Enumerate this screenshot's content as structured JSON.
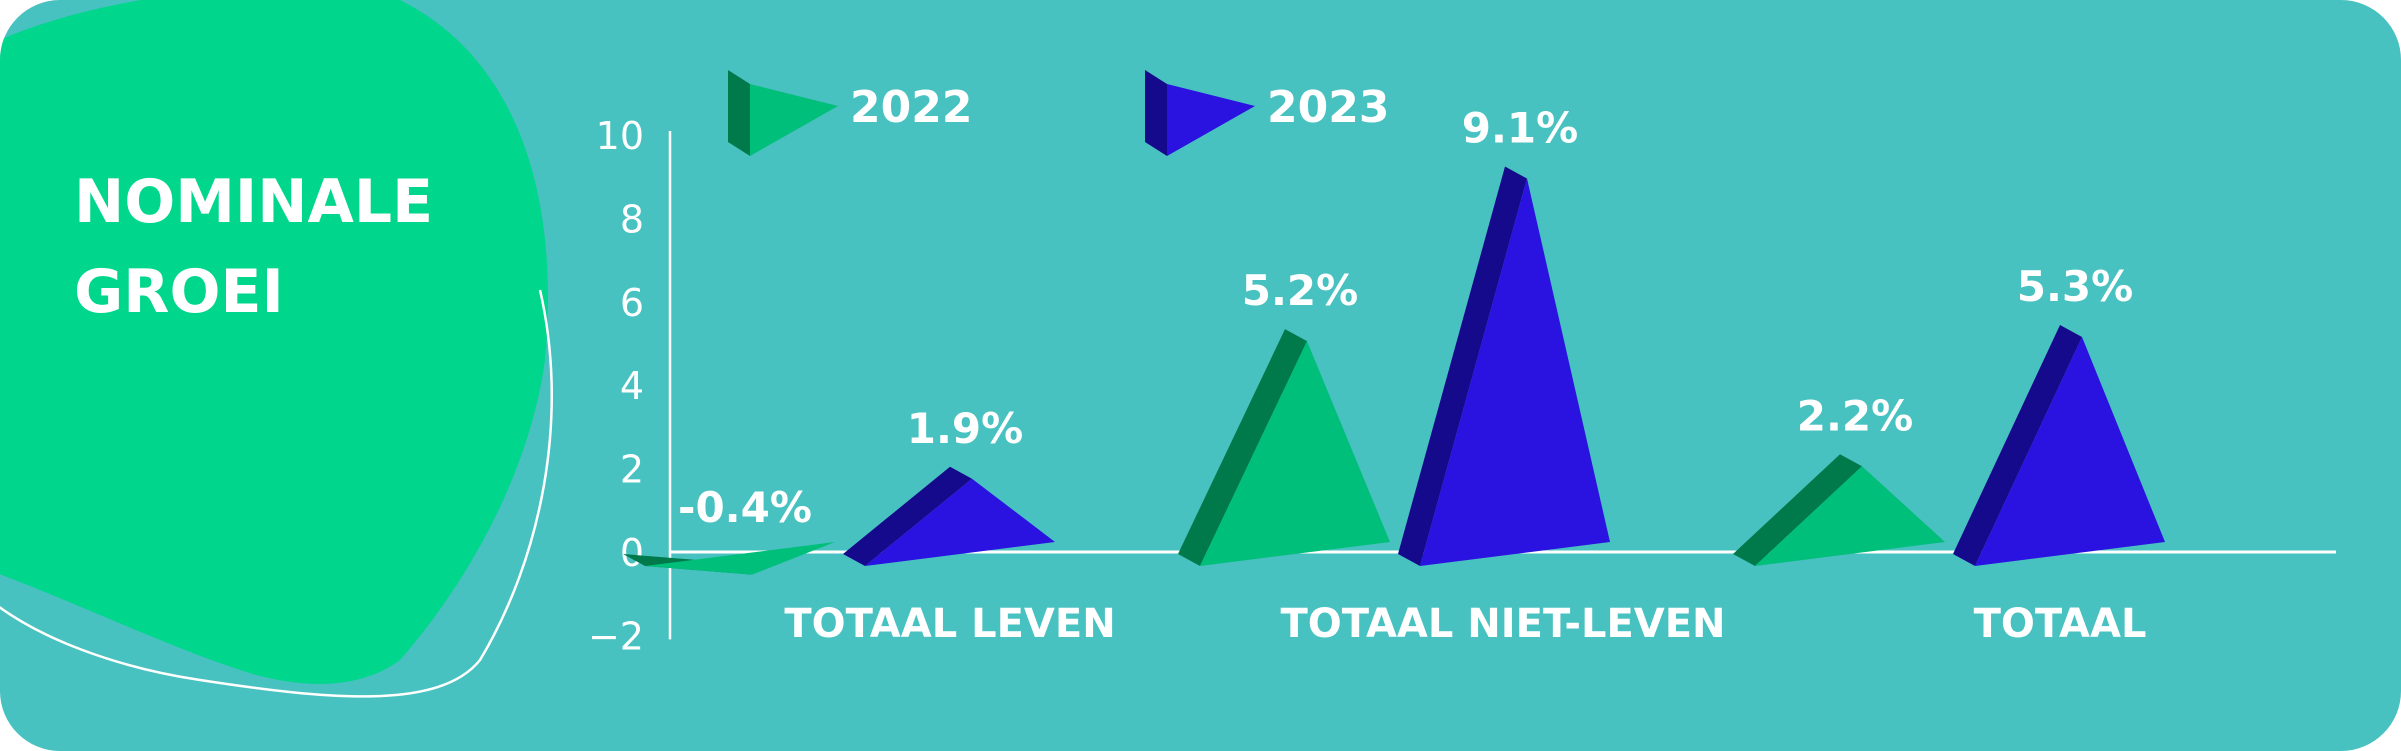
{
  "title": "NOMINALE GROEI",
  "title_lines": [
    "NOMINALE",
    "GROEI"
  ],
  "colors": {
    "panel": "#48c1c1",
    "blob": "#00d68c",
    "green_face": "#00bf7a",
    "green_side": "#007a4a",
    "blue_face": "#2a12e0",
    "blue_side": "#160a8c",
    "text": "#ffffff"
  },
  "chart_data": {
    "type": "bar",
    "categories": [
      "TOTAAL LEVEN",
      "TOTAAL NIET-LEVEN",
      "TOTAAL"
    ],
    "series": [
      {
        "name": "2022",
        "values": [
          -0.4,
          5.2,
          2.2
        ],
        "labels": [
          "-0.4%",
          "5.2%",
          "2.2%"
        ]
      },
      {
        "name": "2023",
        "values": [
          1.9,
          9.1,
          5.3
        ],
        "labels": [
          "1.9%",
          "9.1%",
          "5.3%"
        ]
      }
    ],
    "ylim": [
      -2,
      10
    ],
    "yticks": [
      "−2",
      "0",
      "2",
      "4",
      "6",
      "8",
      "10"
    ],
    "ytick_values": [
      -2,
      0,
      2,
      4,
      6,
      8,
      10
    ],
    "legend_position": "top-left",
    "grid": false
  }
}
